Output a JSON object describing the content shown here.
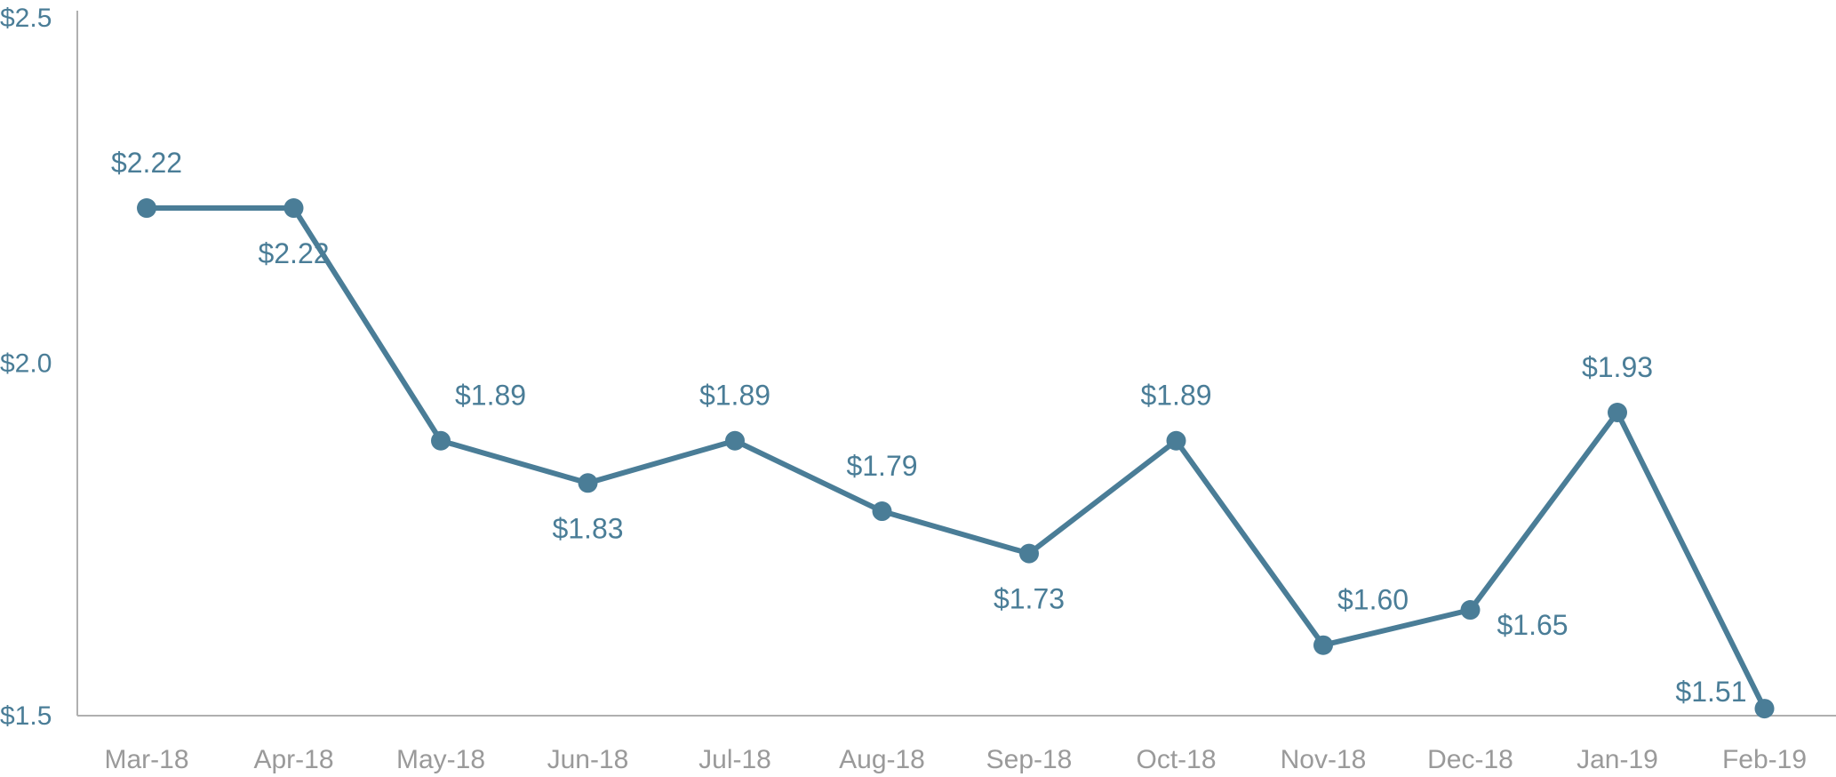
{
  "chart_data": {
    "type": "line",
    "title": "",
    "xlabel": "",
    "ylabel": "",
    "categories": [
      "Mar-18",
      "Apr-18",
      "May-18",
      "Jun-18",
      "Jul-18",
      "Aug-18",
      "Sep-18",
      "Oct-18",
      "Nov-18",
      "Dec-18",
      "Jan-19",
      "Feb-19"
    ],
    "series": [
      {
        "values": [
          2.22,
          2.22,
          1.89,
          1.83,
          1.89,
          1.79,
          1.73,
          1.89,
          1.6,
          1.65,
          1.93,
          1.51
        ],
        "labels": [
          "$2.22",
          "$2.22",
          "$1.89",
          "$1.83",
          "$1.89",
          "$1.79",
          "$1.73",
          "$1.89",
          "$1.60",
          "$1.65",
          "$1.93",
          "$1.51"
        ],
        "label_positions": [
          "above",
          "below",
          "above-right",
          "below",
          "above",
          "above",
          "below",
          "above",
          "above-right",
          "below-right",
          "above",
          "above-left"
        ]
      }
    ],
    "ylim": [
      1.5,
      2.5
    ],
    "yticks": [
      1.5,
      2.0,
      2.5
    ],
    "ytick_labels": [
      "$1.5",
      "$2.0",
      "$2.5"
    ],
    "grid": false,
    "legend": "none",
    "colors": {
      "line": "#4a7d97",
      "tick_y": "#4a7d97",
      "tick_x": "#9a9a9a",
      "axis": "#b0b0b0"
    }
  }
}
